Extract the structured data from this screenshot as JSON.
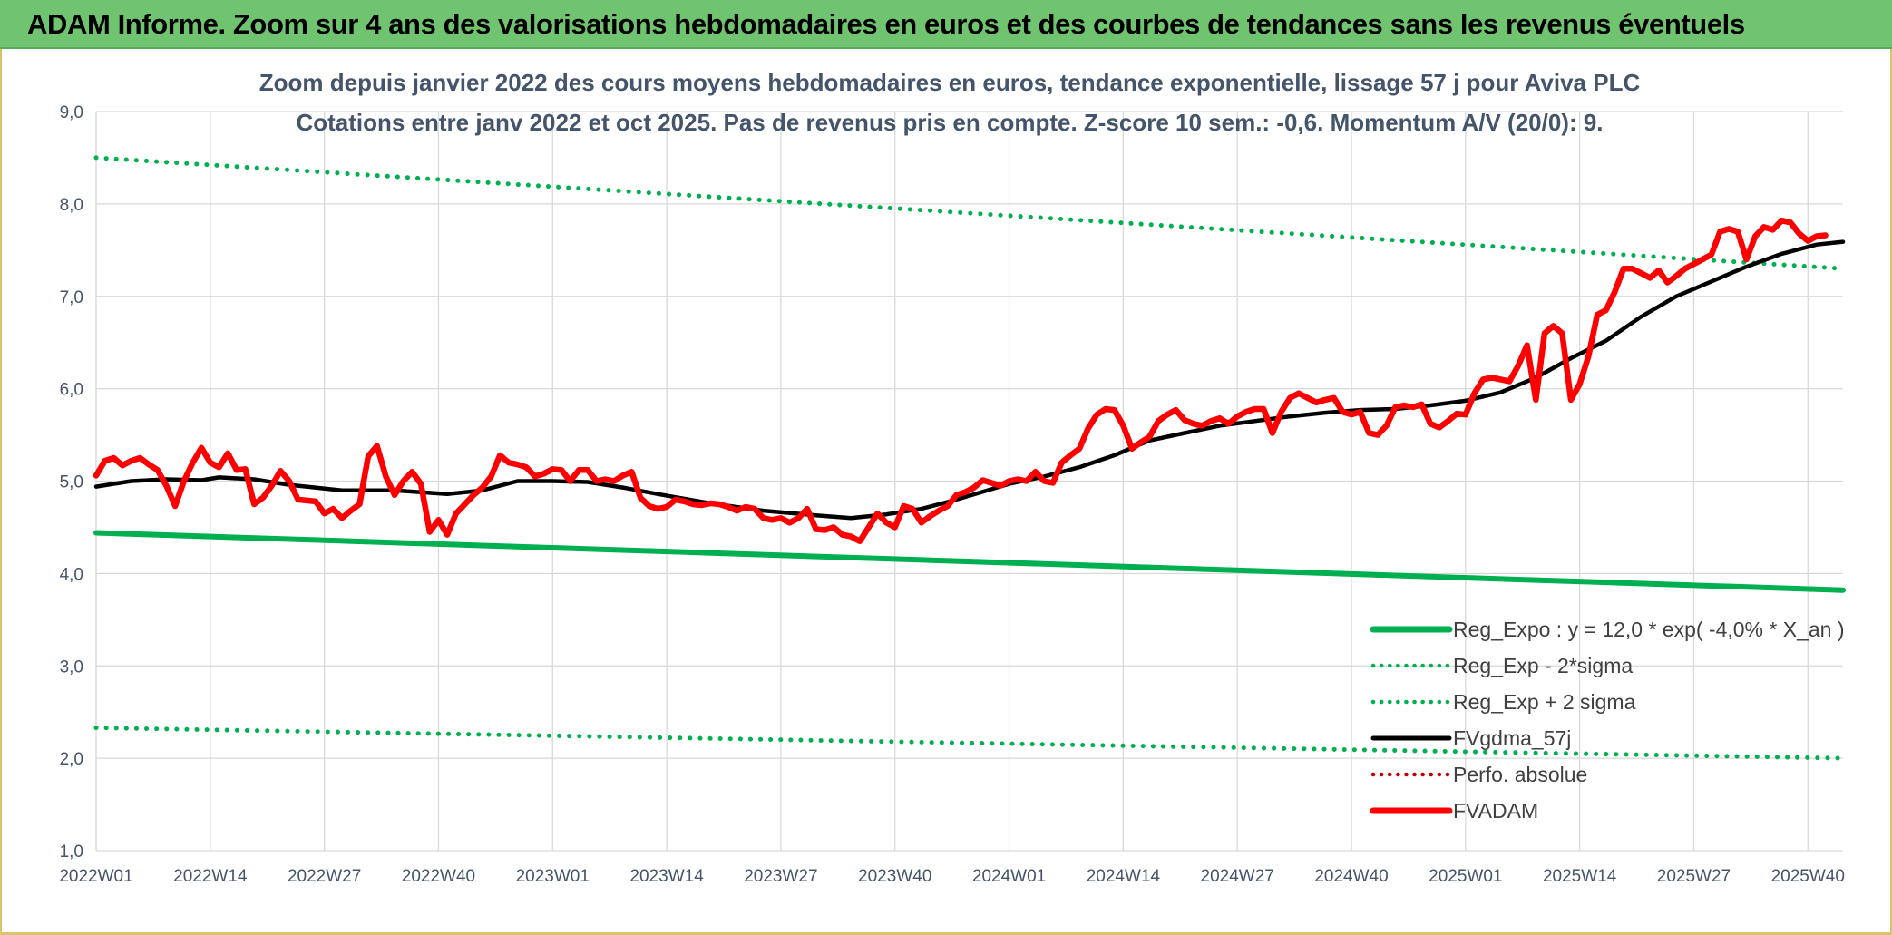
{
  "header": {
    "title": "ADAM Informe. Zoom sur 4 ans des valorisations hebdomadaires en euros et des courbes de tendances sans les revenus éventuels"
  },
  "colors": {
    "banner": "#70c46f",
    "trend_green": "#00b050",
    "moving_avg": "#000000",
    "adam_red": "#ff0000",
    "perf_red": "#c00000",
    "grid": "#d9d9d9"
  },
  "chart_data": {
    "type": "line",
    "title_lines": [
      "Zoom depuis janvier 2022 des cours moyens hebdomadaires en euros, tendance exponentielle, lissage 57 j pour Aviva PLC",
      "Cotations entre janv 2022 et oct 2025. Pas de revenus pris en compte. Z-score 10 sem.: -0,6. Momentum A/V (20/0): 9."
    ],
    "ylim": [
      1.0,
      9.0
    ],
    "y_ticks": [
      "1,0",
      "2,0",
      "3,0",
      "4,0",
      "5,0",
      "6,0",
      "7,0",
      "8,0",
      "9,0"
    ],
    "x_range_weeks": [
      0,
      199
    ],
    "x_ticks": [
      {
        "label": "2022W01",
        "week": 0
      },
      {
        "label": "2022W14",
        "week": 13
      },
      {
        "label": "2022W27",
        "week": 26
      },
      {
        "label": "2022W40",
        "week": 39
      },
      {
        "label": "2023W01",
        "week": 52
      },
      {
        "label": "2023W14",
        "week": 65
      },
      {
        "label": "2023W27",
        "week": 78
      },
      {
        "label": "2023W40",
        "week": 91
      },
      {
        "label": "2024W01",
        "week": 104
      },
      {
        "label": "2024W14",
        "week": 117
      },
      {
        "label": "2024W27",
        "week": 130
      },
      {
        "label": "2024W40",
        "week": 143
      },
      {
        "label": "2025W01",
        "week": 156
      },
      {
        "label": "2025W14",
        "week": 169
      },
      {
        "label": "2025W27",
        "week": 182
      },
      {
        "label": "2025W40",
        "week": 195
      }
    ],
    "grid": true,
    "legend_position": "bottom-right",
    "series": [
      {
        "name": "Reg_Expo : y = 12,0 * exp( -4,0% *  X_an )",
        "style": "solid",
        "color": "#00b050",
        "points": [
          [
            0,
            4.44
          ],
          [
            199,
            3.82
          ]
        ]
      },
      {
        "name": "Reg_Exp - 2*sigma",
        "style": "dotted",
        "color": "#00b050",
        "points": [
          [
            0,
            2.33
          ],
          [
            199,
            2.0
          ]
        ]
      },
      {
        "name": "Reg_Exp + 2 sigma",
        "style": "dotted",
        "color": "#00b050",
        "points": [
          [
            0,
            8.5
          ],
          [
            199,
            7.3
          ]
        ]
      },
      {
        "name": "FVgdma_57j",
        "style": "solid",
        "color": "#000000",
        "points": [
          [
            0,
            4.94
          ],
          [
            4,
            5.0
          ],
          [
            8,
            5.02
          ],
          [
            12,
            5.01
          ],
          [
            14,
            5.04
          ],
          [
            18,
            5.02
          ],
          [
            22,
            4.96
          ],
          [
            28,
            4.9
          ],
          [
            34,
            4.9
          ],
          [
            40,
            4.86
          ],
          [
            44,
            4.9
          ],
          [
            48,
            5.0
          ],
          [
            52,
            5.0
          ],
          [
            56,
            4.99
          ],
          [
            60,
            4.93
          ],
          [
            64,
            4.86
          ],
          [
            70,
            4.76
          ],
          [
            76,
            4.68
          ],
          [
            82,
            4.63
          ],
          [
            86,
            4.6
          ],
          [
            90,
            4.64
          ],
          [
            94,
            4.7
          ],
          [
            98,
            4.8
          ],
          [
            104,
            4.97
          ],
          [
            108,
            5.05
          ],
          [
            112,
            5.15
          ],
          [
            116,
            5.28
          ],
          [
            120,
            5.44
          ],
          [
            124,
            5.52
          ],
          [
            128,
            5.6
          ],
          [
            132,
            5.65
          ],
          [
            136,
            5.7
          ],
          [
            140,
            5.74
          ],
          [
            144,
            5.77
          ],
          [
            148,
            5.78
          ],
          [
            152,
            5.82
          ],
          [
            156,
            5.87
          ],
          [
            160,
            5.96
          ],
          [
            164,
            6.12
          ],
          [
            168,
            6.33
          ],
          [
            172,
            6.52
          ],
          [
            176,
            6.78
          ],
          [
            180,
            7.0
          ],
          [
            184,
            7.16
          ],
          [
            188,
            7.32
          ],
          [
            192,
            7.46
          ],
          [
            196,
            7.56
          ],
          [
            199,
            7.59
          ]
        ]
      },
      {
        "name": "Perfo. absolue",
        "style": "dotted",
        "color": "#c00000",
        "points": []
      },
      {
        "name": "FVADAM",
        "style": "solid",
        "color": "#ff0000",
        "points": [
          [
            0,
            5.06
          ],
          [
            1,
            5.22
          ],
          [
            2,
            5.25
          ],
          [
            3,
            5.17
          ],
          [
            4,
            5.22
          ],
          [
            5,
            5.25
          ],
          [
            6,
            5.18
          ],
          [
            7,
            5.12
          ],
          [
            8,
            4.95
          ],
          [
            9,
            4.73
          ],
          [
            10,
            5.0
          ],
          [
            11,
            5.2
          ],
          [
            12,
            5.36
          ],
          [
            13,
            5.2
          ],
          [
            14,
            5.15
          ],
          [
            15,
            5.3
          ],
          [
            16,
            5.12
          ],
          [
            17,
            5.13
          ],
          [
            18,
            4.75
          ],
          [
            19,
            4.82
          ],
          [
            20,
            4.95
          ],
          [
            21,
            5.11
          ],
          [
            22,
            5.0
          ],
          [
            23,
            4.8
          ],
          [
            24,
            4.79
          ],
          [
            25,
            4.78
          ],
          [
            26,
            4.65
          ],
          [
            27,
            4.7
          ],
          [
            28,
            4.6
          ],
          [
            29,
            4.68
          ],
          [
            30,
            4.75
          ],
          [
            31,
            5.27
          ],
          [
            32,
            5.38
          ],
          [
            33,
            5.05
          ],
          [
            34,
            4.85
          ],
          [
            35,
            5.0
          ],
          [
            36,
            5.1
          ],
          [
            37,
            4.97
          ],
          [
            38,
            4.45
          ],
          [
            39,
            4.58
          ],
          [
            40,
            4.42
          ],
          [
            41,
            4.65
          ],
          [
            42,
            4.75
          ],
          [
            43,
            4.85
          ],
          [
            44,
            4.93
          ],
          [
            45,
            5.05
          ],
          [
            46,
            5.28
          ],
          [
            47,
            5.2
          ],
          [
            48,
            5.18
          ],
          [
            49,
            5.15
          ],
          [
            50,
            5.05
          ],
          [
            51,
            5.08
          ],
          [
            52,
            5.13
          ],
          [
            53,
            5.12
          ],
          [
            54,
            5.0
          ],
          [
            55,
            5.12
          ],
          [
            56,
            5.12
          ],
          [
            57,
            5.0
          ],
          [
            58,
            5.02
          ],
          [
            59,
            5.0
          ],
          [
            60,
            5.06
          ],
          [
            61,
            5.1
          ],
          [
            62,
            4.82
          ],
          [
            63,
            4.73
          ],
          [
            64,
            4.7
          ],
          [
            65,
            4.72
          ],
          [
            66,
            4.8
          ],
          [
            67,
            4.78
          ],
          [
            68,
            4.75
          ],
          [
            69,
            4.74
          ],
          [
            70,
            4.76
          ],
          [
            71,
            4.75
          ],
          [
            72,
            4.72
          ],
          [
            73,
            4.68
          ],
          [
            74,
            4.72
          ],
          [
            75,
            4.7
          ],
          [
            76,
            4.6
          ],
          [
            77,
            4.58
          ],
          [
            78,
            4.6
          ],
          [
            79,
            4.55
          ],
          [
            80,
            4.6
          ],
          [
            81,
            4.7
          ],
          [
            82,
            4.48
          ],
          [
            83,
            4.47
          ],
          [
            84,
            4.5
          ],
          [
            85,
            4.42
          ],
          [
            86,
            4.4
          ],
          [
            87,
            4.35
          ],
          [
            88,
            4.5
          ],
          [
            89,
            4.65
          ],
          [
            90,
            4.55
          ],
          [
            91,
            4.5
          ],
          [
            92,
            4.73
          ],
          [
            93,
            4.7
          ],
          [
            94,
            4.55
          ],
          [
            95,
            4.62
          ],
          [
            96,
            4.68
          ],
          [
            97,
            4.73
          ],
          [
            98,
            4.85
          ],
          [
            99,
            4.88
          ],
          [
            100,
            4.93
          ],
          [
            101,
            5.01
          ],
          [
            102,
            4.98
          ],
          [
            103,
            4.95
          ],
          [
            104,
            5.0
          ],
          [
            105,
            5.02
          ],
          [
            106,
            5.0
          ],
          [
            107,
            5.1
          ],
          [
            108,
            5.0
          ],
          [
            109,
            4.98
          ],
          [
            110,
            5.2
          ],
          [
            111,
            5.28
          ],
          [
            112,
            5.35
          ],
          [
            113,
            5.57
          ],
          [
            114,
            5.72
          ],
          [
            115,
            5.78
          ],
          [
            116,
            5.77
          ],
          [
            117,
            5.6
          ],
          [
            118,
            5.35
          ],
          [
            119,
            5.42
          ],
          [
            120,
            5.48
          ],
          [
            121,
            5.65
          ],
          [
            122,
            5.72
          ],
          [
            123,
            5.77
          ],
          [
            124,
            5.66
          ],
          [
            125,
            5.62
          ],
          [
            126,
            5.6
          ],
          [
            127,
            5.65
          ],
          [
            128,
            5.68
          ],
          [
            129,
            5.62
          ],
          [
            130,
            5.7
          ],
          [
            131,
            5.75
          ],
          [
            132,
            5.78
          ],
          [
            133,
            5.78
          ],
          [
            134,
            5.52
          ],
          [
            135,
            5.75
          ],
          [
            136,
            5.9
          ],
          [
            137,
            5.95
          ],
          [
            138,
            5.9
          ],
          [
            139,
            5.85
          ],
          [
            140,
            5.88
          ],
          [
            141,
            5.9
          ],
          [
            142,
            5.75
          ],
          [
            143,
            5.72
          ],
          [
            144,
            5.75
          ],
          [
            145,
            5.52
          ],
          [
            146,
            5.5
          ],
          [
            147,
            5.6
          ],
          [
            148,
            5.8
          ],
          [
            149,
            5.82
          ],
          [
            150,
            5.8
          ],
          [
            151,
            5.83
          ],
          [
            152,
            5.62
          ],
          [
            153,
            5.58
          ],
          [
            154,
            5.65
          ],
          [
            155,
            5.73
          ],
          [
            156,
            5.72
          ],
          [
            157,
            5.95
          ],
          [
            158,
            6.1
          ],
          [
            159,
            6.12
          ],
          [
            160,
            6.1
          ],
          [
            161,
            6.08
          ],
          [
            162,
            6.25
          ],
          [
            163,
            6.47
          ],
          [
            164,
            5.88
          ],
          [
            165,
            6.6
          ],
          [
            166,
            6.68
          ],
          [
            167,
            6.6
          ],
          [
            168,
            5.88
          ],
          [
            169,
            6.05
          ],
          [
            170,
            6.35
          ],
          [
            171,
            6.8
          ],
          [
            172,
            6.85
          ],
          [
            173,
            7.05
          ],
          [
            174,
            7.3
          ],
          [
            175,
            7.3
          ],
          [
            176,
            7.25
          ],
          [
            177,
            7.2
          ],
          [
            178,
            7.28
          ],
          [
            179,
            7.15
          ],
          [
            180,
            7.22
          ],
          [
            181,
            7.3
          ],
          [
            182,
            7.35
          ],
          [
            183,
            7.4
          ],
          [
            184,
            7.45
          ],
          [
            185,
            7.7
          ],
          [
            186,
            7.73
          ],
          [
            187,
            7.7
          ],
          [
            188,
            7.4
          ],
          [
            189,
            7.65
          ],
          [
            190,
            7.75
          ],
          [
            191,
            7.72
          ],
          [
            192,
            7.82
          ],
          [
            193,
            7.8
          ],
          [
            194,
            7.68
          ],
          [
            195,
            7.6
          ],
          [
            196,
            7.65
          ],
          [
            197,
            7.66
          ]
        ]
      }
    ]
  }
}
